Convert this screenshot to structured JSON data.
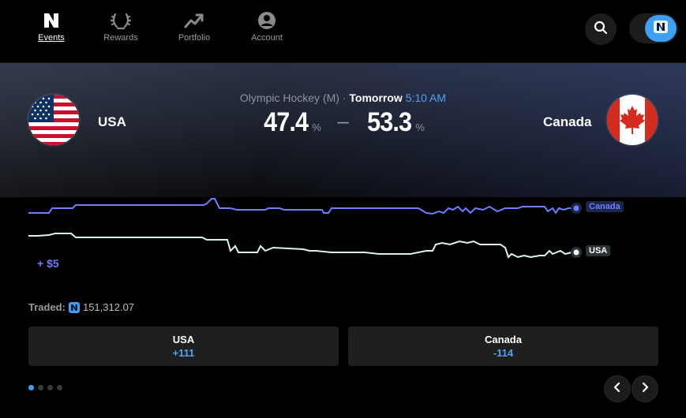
{
  "nav": {
    "items": [
      {
        "label": "Events",
        "icon": "n-logo-icon",
        "active": true
      },
      {
        "label": "Rewards",
        "icon": "laurel-icon"
      },
      {
        "label": "Portfolio",
        "icon": "trending-up-icon"
      },
      {
        "label": "Account",
        "icon": "user-icon"
      }
    ]
  },
  "header": {
    "search_icon": "search-icon",
    "toggle_icon": "n-logo-icon"
  },
  "event": {
    "league": "Olympic Hockey (M)",
    "separator": "·",
    "day": "Tomorrow",
    "time": "5:10 AM"
  },
  "teams": {
    "home": {
      "name": "USA",
      "pct": "47.4",
      "pct_sign": "%",
      "odds": "+111"
    },
    "away": {
      "name": "Canada",
      "pct": "53.3",
      "pct_sign": "%",
      "odds": "-114"
    }
  },
  "score_dash": "–",
  "chart_labels": {
    "canada": "Canada",
    "usa": "USA",
    "bonus": "+ $5"
  },
  "traded": {
    "label": "Traded:",
    "value": "151,312.07"
  },
  "colors": {
    "canada_line": "#6b7fff",
    "usa_line": "#d8f4f2",
    "accent": "#3da0f5",
    "odds": "#4fa3f7"
  },
  "pager": {
    "count": 4,
    "active_index": 0
  }
}
